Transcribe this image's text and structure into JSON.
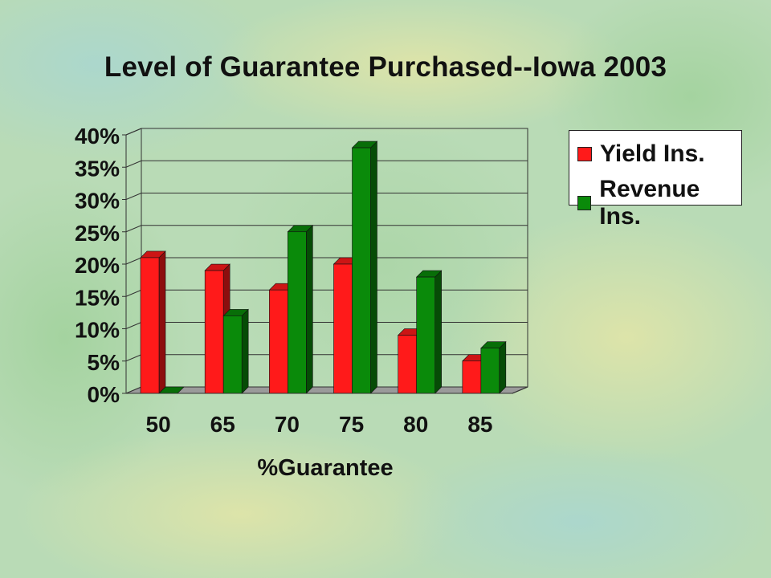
{
  "slide": {
    "title": "Level of Guarantee Purchased--Iowa 2003"
  },
  "chart_data": {
    "type": "bar",
    "title": "Level of Guarantee Purchased--Iowa 2003",
    "xlabel": "%Guarantee",
    "ylabel": "",
    "categories": [
      "50",
      "65",
      "70",
      "75",
      "80",
      "85"
    ],
    "series": [
      {
        "name": "Yield Ins.",
        "color": "#ff1a1a",
        "values": [
          21,
          19,
          16,
          20,
          9,
          5
        ]
      },
      {
        "name": "Revenue Ins.",
        "color": "#0a8a0a",
        "values": [
          0,
          12,
          25,
          38,
          18,
          7
        ]
      }
    ],
    "ylim": [
      0,
      40
    ],
    "yticks": [
      "0%",
      "5%",
      "10%",
      "15%",
      "20%",
      "25%",
      "30%",
      "35%",
      "40%"
    ],
    "grid": true,
    "legend": "right"
  }
}
